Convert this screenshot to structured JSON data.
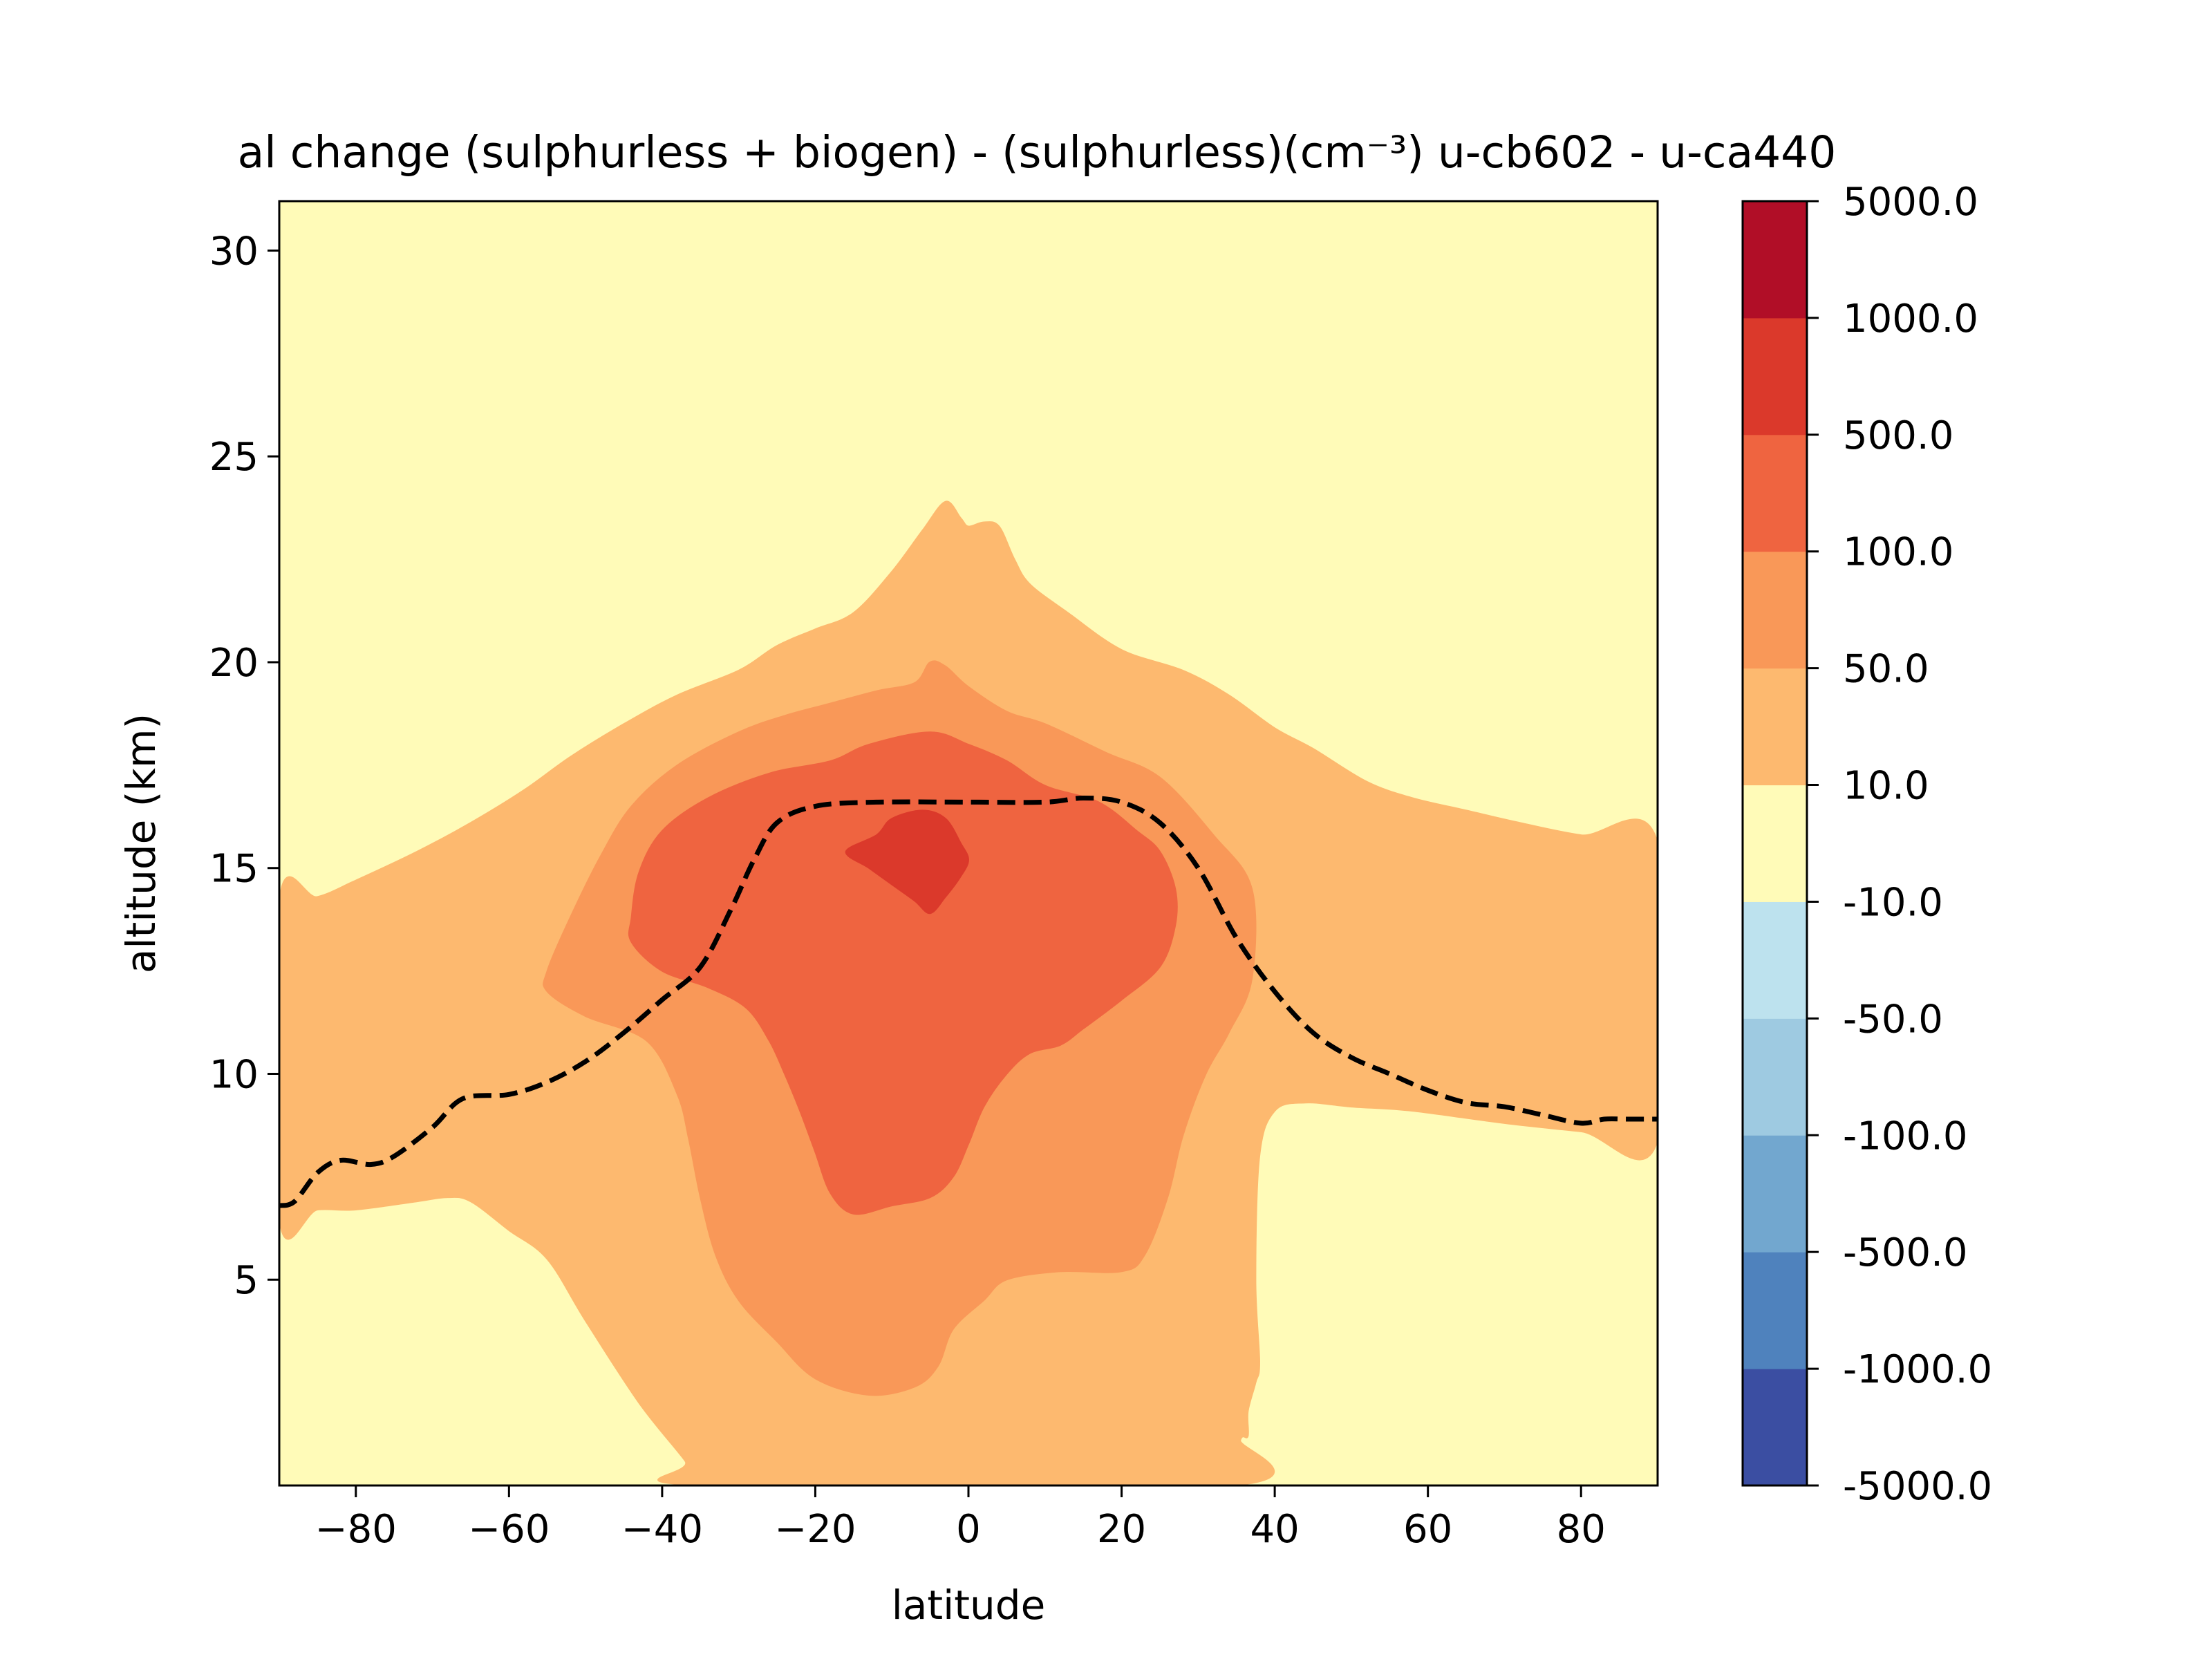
{
  "chart_data": {
    "type": "contour",
    "title": "al change (sulphurless + biogen) - (sulphurless)(cm⁻³) u-cb602 - u-ca440",
    "xlabel": "latitude",
    "ylabel": "altitude (km)",
    "xlim": [
      -90,
      90
    ],
    "ylim": [
      0,
      31.2
    ],
    "x_ticks": [
      -80,
      -60,
      -40,
      -20,
      0,
      20,
      40,
      60,
      80
    ],
    "x_tick_labels": [
      "−80",
      "−60",
      "−40",
      "−20",
      "0",
      "20",
      "40",
      "60",
      "80"
    ],
    "y_ticks": [
      5,
      10,
      15,
      20,
      25,
      30
    ],
    "y_tick_labels": [
      "5",
      "10",
      "15",
      "20",
      "25",
      "30"
    ],
    "grid": false,
    "colorbar": {
      "position": "right",
      "tick_labels": [
        "-5000.0",
        "-1000.0",
        "-500.0",
        "-100.0",
        "-50.0",
        "-10.0",
        "10.0",
        "50.0",
        "100.0",
        "500.0",
        "1000.0",
        "5000.0"
      ],
      "colors": [
        "#3b4ea2",
        "#4f82bd",
        "#72a7cf",
        "#9ecae1",
        "#bde2ee",
        "#fffbb8",
        "#fdb96f",
        "#f99858",
        "#ef6440",
        "#db392b",
        "#b10e27"
      ]
    },
    "background_level_color": "#fffbb8",
    "regions": [
      {
        "level": "10.0 to 50.0",
        "color": "#fdb96f",
        "points": [
          [
            -90,
            14.2
          ],
          [
            -85,
            14.3
          ],
          [
            -80,
            14.7
          ],
          [
            -72,
            15.4
          ],
          [
            -65,
            16.1
          ],
          [
            -58,
            16.9
          ],
          [
            -52,
            17.7
          ],
          [
            -45,
            18.5
          ],
          [
            -38,
            19.2
          ],
          [
            -30,
            19.8
          ],
          [
            -25,
            20.4
          ],
          [
            -20,
            20.8
          ],
          [
            -15,
            21.2
          ],
          [
            -10,
            22.2
          ],
          [
            -6,
            23.2
          ],
          [
            -3,
            23.9
          ],
          [
            -1,
            23.5
          ],
          [
            0,
            23.3
          ],
          [
            2,
            23.4
          ],
          [
            4,
            23.3
          ],
          [
            6,
            22.5
          ],
          [
            8,
            21.9
          ],
          [
            13,
            21.2
          ],
          [
            20,
            20.3
          ],
          [
            28,
            19.8
          ],
          [
            34,
            19.2
          ],
          [
            40,
            18.4
          ],
          [
            45,
            17.9
          ],
          [
            52,
            17.1
          ],
          [
            58,
            16.7
          ],
          [
            65,
            16.4
          ],
          [
            72,
            16.1
          ],
          [
            80,
            15.8
          ],
          [
            90,
            15.6
          ],
          [
            90,
            8.4
          ],
          [
            80,
            8.6
          ],
          [
            70,
            8.8
          ],
          [
            58,
            9.1
          ],
          [
            50,
            9.2
          ],
          [
            44,
            9.3
          ],
          [
            40,
            9.1
          ],
          [
            38,
            8.0
          ],
          [
            37.5,
            5.0
          ],
          [
            38,
            3.0
          ],
          [
            37.5,
            2.5
          ],
          [
            36.5,
            1.8
          ],
          [
            36.5,
            1.2
          ],
          [
            35.5,
            1.1
          ],
          [
            34.5,
            0
          ],
          [
            -35,
            0
          ],
          [
            -37,
            0.6
          ],
          [
            -43,
            2.0
          ],
          [
            -50,
            4.0
          ],
          [
            -55,
            5.5
          ],
          [
            -60,
            6.2
          ],
          [
            -65,
            6.9
          ],
          [
            -68,
            7.0
          ],
          [
            -72,
            6.9
          ],
          [
            -80,
            6.7
          ],
          [
            -85,
            6.7
          ],
          [
            -90,
            6.5
          ]
        ]
      },
      {
        "level": "50.0 to 100.0",
        "color": "#f99858",
        "points": [
          [
            -55,
            12.5
          ],
          [
            -52,
            13.8
          ],
          [
            -48,
            15.3
          ],
          [
            -44,
            16.5
          ],
          [
            -38,
            17.5
          ],
          [
            -30,
            18.3
          ],
          [
            -24,
            18.7
          ],
          [
            -18,
            19.0
          ],
          [
            -12,
            19.3
          ],
          [
            -7,
            19.5
          ],
          [
            -5,
            20.0
          ],
          [
            -3,
            19.9
          ],
          [
            0,
            19.4
          ],
          [
            5,
            18.8
          ],
          [
            10,
            18.5
          ],
          [
            18,
            17.8
          ],
          [
            25,
            17.2
          ],
          [
            32,
            15.8
          ],
          [
            37,
            14.5
          ],
          [
            37,
            12.3
          ],
          [
            34,
            11.0
          ],
          [
            31,
            10.0
          ],
          [
            28,
            8.5
          ],
          [
            26,
            7.0
          ],
          [
            23,
            5.6
          ],
          [
            20,
            5.2
          ],
          [
            12,
            5.2
          ],
          [
            5,
            5.0
          ],
          [
            2,
            4.5
          ],
          [
            -2,
            3.8
          ],
          [
            -4,
            2.9
          ],
          [
            -7,
            2.4
          ],
          [
            -13,
            2.2
          ],
          [
            -20,
            2.6
          ],
          [
            -25,
            3.5
          ],
          [
            -30,
            4.5
          ],
          [
            -33,
            5.6
          ],
          [
            -35,
            7.0
          ],
          [
            -36.5,
            8.4
          ],
          [
            -38,
            9.5
          ],
          [
            -42,
            10.8
          ],
          [
            -50,
            11.4
          ],
          [
            -55,
            12.0
          ]
        ]
      },
      {
        "level": "100.0 to 500.0",
        "color": "#ef6440",
        "points": [
          [
            -44,
            13.8
          ],
          [
            -43,
            14.9
          ],
          [
            -40,
            15.9
          ],
          [
            -34,
            16.7
          ],
          [
            -26,
            17.3
          ],
          [
            -18,
            17.6
          ],
          [
            -13,
            18.0
          ],
          [
            -5,
            18.3
          ],
          [
            0,
            18.0
          ],
          [
            5,
            17.6
          ],
          [
            10,
            17.0
          ],
          [
            17,
            16.6
          ],
          [
            22,
            15.9
          ],
          [
            25,
            15.4
          ],
          [
            27,
            14.5
          ],
          [
            27,
            13.6
          ],
          [
            25,
            12.6
          ],
          [
            20,
            11.8
          ],
          [
            15,
            11.1
          ],
          [
            12,
            10.7
          ],
          [
            8,
            10.5
          ],
          [
            5,
            10.0
          ],
          [
            2,
            9.2
          ],
          [
            0,
            8.3
          ],
          [
            -2,
            7.5
          ],
          [
            -5,
            7.0
          ],
          [
            -10,
            6.8
          ],
          [
            -15,
            6.6
          ],
          [
            -18,
            7.1
          ],
          [
            -20,
            8.1
          ],
          [
            -22,
            9.1
          ],
          [
            -24,
            10.0
          ],
          [
            -26,
            10.8
          ],
          [
            -29,
            11.6
          ],
          [
            -34,
            12.1
          ],
          [
            -40,
            12.5
          ],
          [
            -44,
            13.2
          ]
        ]
      },
      {
        "level": "500.0 to 1000.0",
        "color": "#db392b",
        "points": [
          [
            -16,
            15.4
          ],
          [
            -12,
            15.8
          ],
          [
            -10,
            16.2
          ],
          [
            -6,
            16.4
          ],
          [
            -3,
            16.2
          ],
          [
            -1,
            15.6
          ],
          [
            0,
            15.2
          ],
          [
            -1,
            14.8
          ],
          [
            -3,
            14.3
          ],
          [
            -5,
            13.9
          ],
          [
            -7,
            14.2
          ],
          [
            -10,
            14.6
          ],
          [
            -13,
            15.0
          ]
        ]
      }
    ],
    "dashed_line": {
      "color": "#000000",
      "points": [
        [
          -90,
          6.8
        ],
        [
          -88,
          6.9
        ],
        [
          -85,
          7.6
        ],
        [
          -82,
          7.9
        ],
        [
          -78,
          7.8
        ],
        [
          -75,
          8.0
        ],
        [
          -70,
          8.7
        ],
        [
          -66,
          9.4
        ],
        [
          -60,
          9.5
        ],
        [
          -55,
          9.8
        ],
        [
          -50,
          10.3
        ],
        [
          -45,
          11.0
        ],
        [
          -40,
          11.8
        ],
        [
          -35,
          12.6
        ],
        [
          -31,
          14.0
        ],
        [
          -28,
          15.2
        ],
        [
          -25,
          16.1
        ],
        [
          -20,
          16.5
        ],
        [
          -12,
          16.6
        ],
        [
          0,
          16.6
        ],
        [
          10,
          16.6
        ],
        [
          15,
          16.7
        ],
        [
          20,
          16.6
        ],
        [
          25,
          16.1
        ],
        [
          30,
          15.0
        ],
        [
          35,
          13.3
        ],
        [
          40,
          12.0
        ],
        [
          45,
          11.0
        ],
        [
          50,
          10.4
        ],
        [
          55,
          10.0
        ],
        [
          60,
          9.6
        ],
        [
          65,
          9.3
        ],
        [
          70,
          9.2
        ],
        [
          75,
          9.0
        ],
        [
          80,
          8.8
        ],
        [
          83,
          8.9
        ],
        [
          86,
          8.9
        ],
        [
          90,
          8.9
        ]
      ]
    }
  }
}
